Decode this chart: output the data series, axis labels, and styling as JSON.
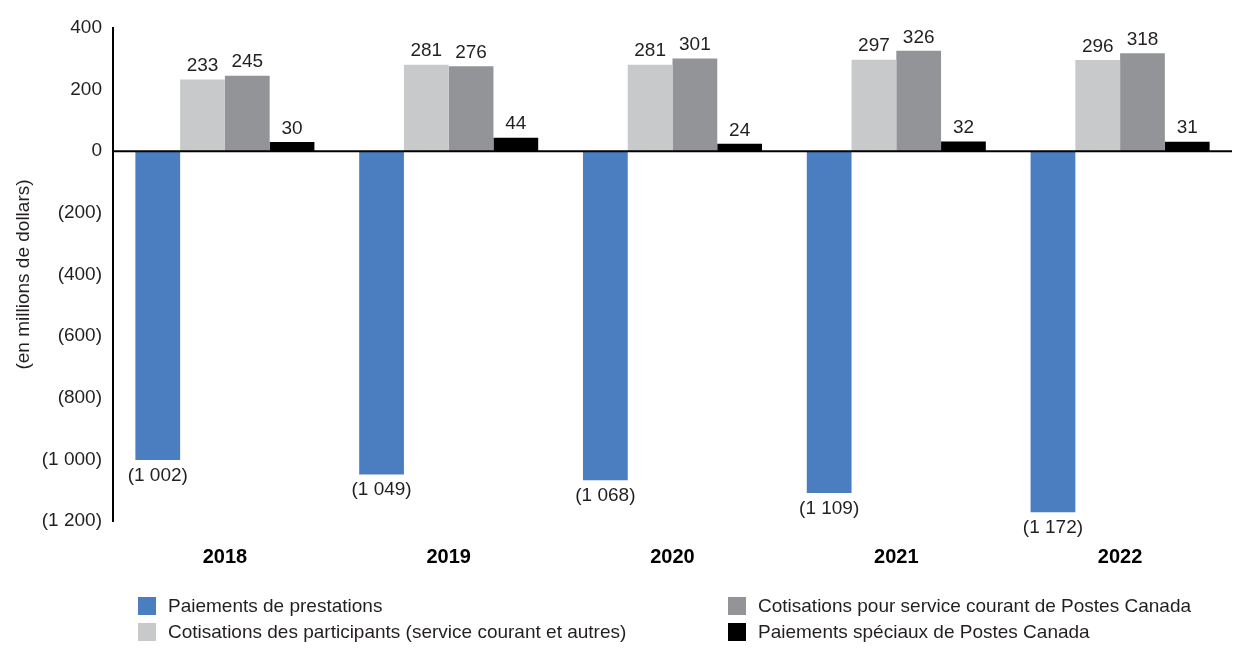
{
  "chart_data": {
    "type": "bar",
    "ylabel": "(en millions de dollars)",
    "categories": [
      "2018",
      "2019",
      "2020",
      "2021",
      "2022"
    ],
    "series": [
      {
        "name": "Paiements de prestations",
        "color": "#4a7ec1",
        "values": [
          -1002,
          -1049,
          -1068,
          -1109,
          -1172
        ],
        "value_labels": [
          "(1 002)",
          "(1 049)",
          "(1 068)",
          "(1 109)",
          "(1 172)"
        ]
      },
      {
        "name": "Cotisations des participants (service courant et autres)",
        "color": "#c8c9cb",
        "values": [
          233,
          281,
          281,
          297,
          296
        ],
        "value_labels": [
          "233",
          "281",
          "281",
          "297",
          "296"
        ]
      },
      {
        "name": "Cotisations pour service courant de Postes Canada",
        "color": "#939497",
        "values": [
          245,
          276,
          301,
          326,
          318
        ],
        "value_labels": [
          "245",
          "276",
          "301",
          "326",
          "318"
        ]
      },
      {
        "name": "Paiements spéciaux de Postes Canada",
        "color": "#000000",
        "values": [
          30,
          44,
          24,
          32,
          31
        ],
        "value_labels": [
          "30",
          "44",
          "24",
          "32",
          "31"
        ]
      }
    ],
    "ylim": [
      -1200,
      400
    ],
    "yticks": [
      {
        "value": 400,
        "label": "400"
      },
      {
        "value": 200,
        "label": "200"
      },
      {
        "value": 0,
        "label": "0"
      },
      {
        "value": -200,
        "label": "(200)"
      },
      {
        "value": -400,
        "label": "(400)"
      },
      {
        "value": -600,
        "label": "(600)"
      },
      {
        "value": -800,
        "label": "(800)"
      },
      {
        "value": -1000,
        "label": "(1 000)"
      },
      {
        "value": -1200,
        "label": "(1 200)"
      }
    ],
    "ref_lines": [
      {
        "axis": "y",
        "value": 0,
        "color": "#000000",
        "line_style": "solid"
      }
    ],
    "grid": false,
    "legend": "bottom"
  }
}
